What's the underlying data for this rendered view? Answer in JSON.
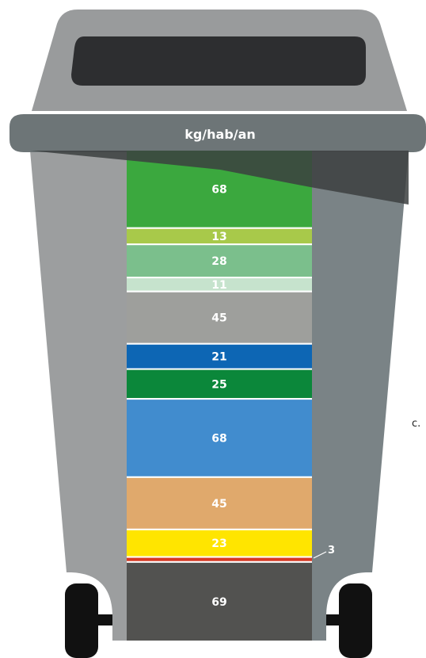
{
  "unit_label": "kg/hab/an",
  "side_note": "c.",
  "colors": {
    "bin_body": "#9c9e9f",
    "bin_shade": "#7a8386",
    "lid": "#6d7577",
    "lid_top": "#999b9c",
    "slot": "#2d2e30",
    "dark_overlay": "#3c3f40",
    "wheel": "#111111"
  },
  "chart_data": {
    "type": "bar",
    "stacked": true,
    "orientation": "vertical",
    "unit": "kg/hab/an",
    "segments": [
      {
        "value": 68,
        "label": "68",
        "color": "#3ba83e"
      },
      {
        "value": 13,
        "label": "13",
        "color": "#a8c94a"
      },
      {
        "value": 28,
        "label": "28",
        "color": "#7bbf8c"
      },
      {
        "value": 11,
        "label": "11",
        "color": "#c6e3cd"
      },
      {
        "value": 45,
        "label": "45",
        "color": "#9e9f9c"
      },
      {
        "value": 21,
        "label": "21",
        "color": "#0d66b4"
      },
      {
        "value": 25,
        "label": "25",
        "color": "#0b873a"
      },
      {
        "value": 68,
        "label": "68",
        "color": "#418cce"
      },
      {
        "value": 45,
        "label": "45",
        "color": "#e0a96c"
      },
      {
        "value": 23,
        "label": "23",
        "color": "#ffe500"
      },
      {
        "value": 3,
        "label": "3",
        "color": "#d63a24",
        "callout": true
      },
      {
        "value": 69,
        "label": "69",
        "color": "#525250"
      }
    ]
  }
}
